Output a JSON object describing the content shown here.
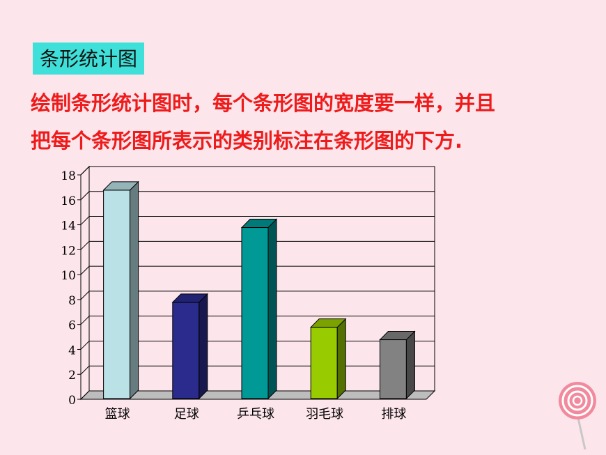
{
  "slide": {
    "title": "条形统计图",
    "text_line1": "绘制条形统计图时，每个条形图的宽度要一样，并且",
    "text_line2": "把每个条形图所表示的类别标注在条形图的下方."
  },
  "colors": {
    "background": "#fde5ec",
    "title_bg": "#3ee0d9",
    "text": "#ee1b1b"
  },
  "chart_data": {
    "type": "bar",
    "title": "",
    "xlabel": "",
    "ylabel": "",
    "categories": [
      "篮球",
      "足球",
      "乒乓球",
      "羽毛球",
      "排球"
    ],
    "values": [
      17,
      8,
      14,
      6,
      5
    ],
    "bar_colors": [
      "#b9e1e6",
      "#2b2b8e",
      "#009996",
      "#99cc00",
      "#828282"
    ],
    "ylim": [
      0,
      18
    ],
    "yticks": [
      "0",
      "2",
      "4",
      "6",
      "8",
      "10",
      "12",
      "14",
      "16",
      "18"
    ],
    "grid": true,
    "legend": "none",
    "style": "3d-columns"
  }
}
